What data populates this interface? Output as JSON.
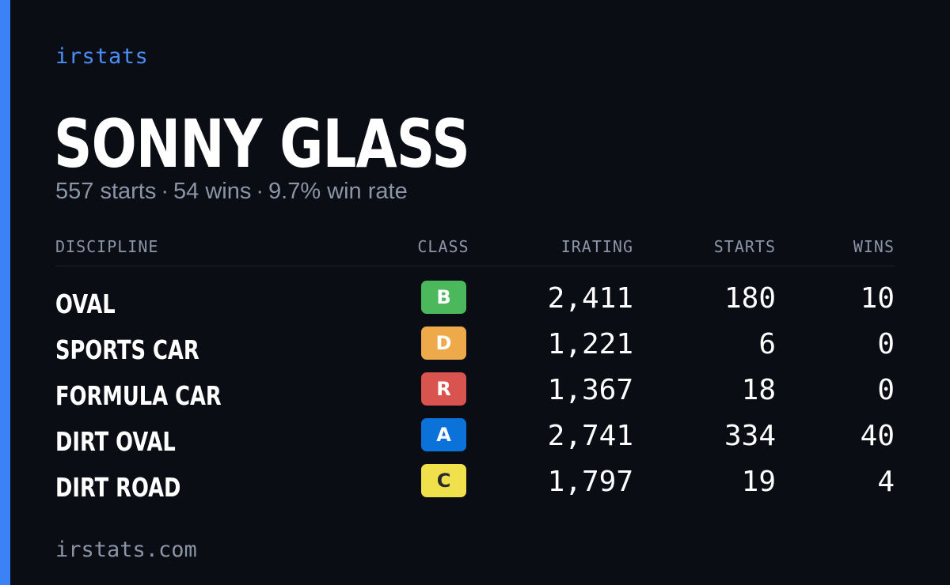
{
  "brand": "irstats",
  "driver": {
    "name": "SONNY GLASS"
  },
  "summary": {
    "starts": "557 starts",
    "wins": "54 wins",
    "win_rate": "9.7% win rate",
    "separator": "·"
  },
  "table": {
    "headers": {
      "discipline": "DISCIPLINE",
      "class": "CLASS",
      "irating": "IRATING",
      "starts": "STARTS",
      "wins": "WINS"
    },
    "rows": [
      {
        "discipline": "OVAL",
        "class": "B",
        "class_color": "#4cb85c",
        "class_text_color": "#ffffff",
        "irating": "2,411",
        "starts": "180",
        "wins": "10"
      },
      {
        "discipline": "SPORTS CAR",
        "class": "D",
        "class_color": "#eea94b",
        "class_text_color": "#ffffff",
        "irating": "1,221",
        "starts": "6",
        "wins": "0"
      },
      {
        "discipline": "FORMULA CAR",
        "class": "R",
        "class_color": "#d9534f",
        "class_text_color": "#ffffff",
        "irating": "1,367",
        "starts": "18",
        "wins": "0"
      },
      {
        "discipline": "DIRT OVAL",
        "class": "A",
        "class_color": "#0a72d9",
        "class_text_color": "#ffffff",
        "irating": "2,741",
        "starts": "334",
        "wins": "40"
      },
      {
        "discipline": "DIRT ROAD",
        "class": "C",
        "class_color": "#f0e04b",
        "class_text_color": "#2a2a2a",
        "irating": "1,797",
        "starts": "19",
        "wins": "4"
      }
    ]
  },
  "footer": {
    "url": "irstats.com"
  },
  "colors": {
    "background": "#0a0d14",
    "accent": "#3b82f6",
    "brand": "#4a8df8",
    "muted": "#8b95a6",
    "text": "#ffffff"
  }
}
